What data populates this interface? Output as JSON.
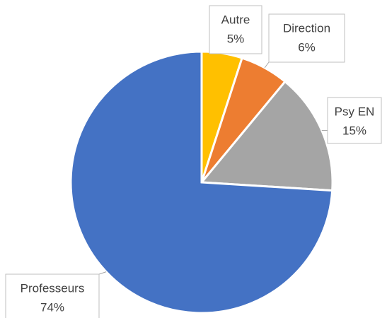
{
  "chart_data": {
    "type": "pie",
    "categories": [
      "Autre",
      "Direction",
      "Psy EN",
      "Professeurs"
    ],
    "values": [
      5,
      6,
      15,
      74
    ],
    "value_labels": [
      "5%",
      "6%",
      "15%",
      "74%"
    ],
    "colors": [
      "#FFC000",
      "#ED7D31",
      "#A5A5A5",
      "#4472C4"
    ]
  }
}
